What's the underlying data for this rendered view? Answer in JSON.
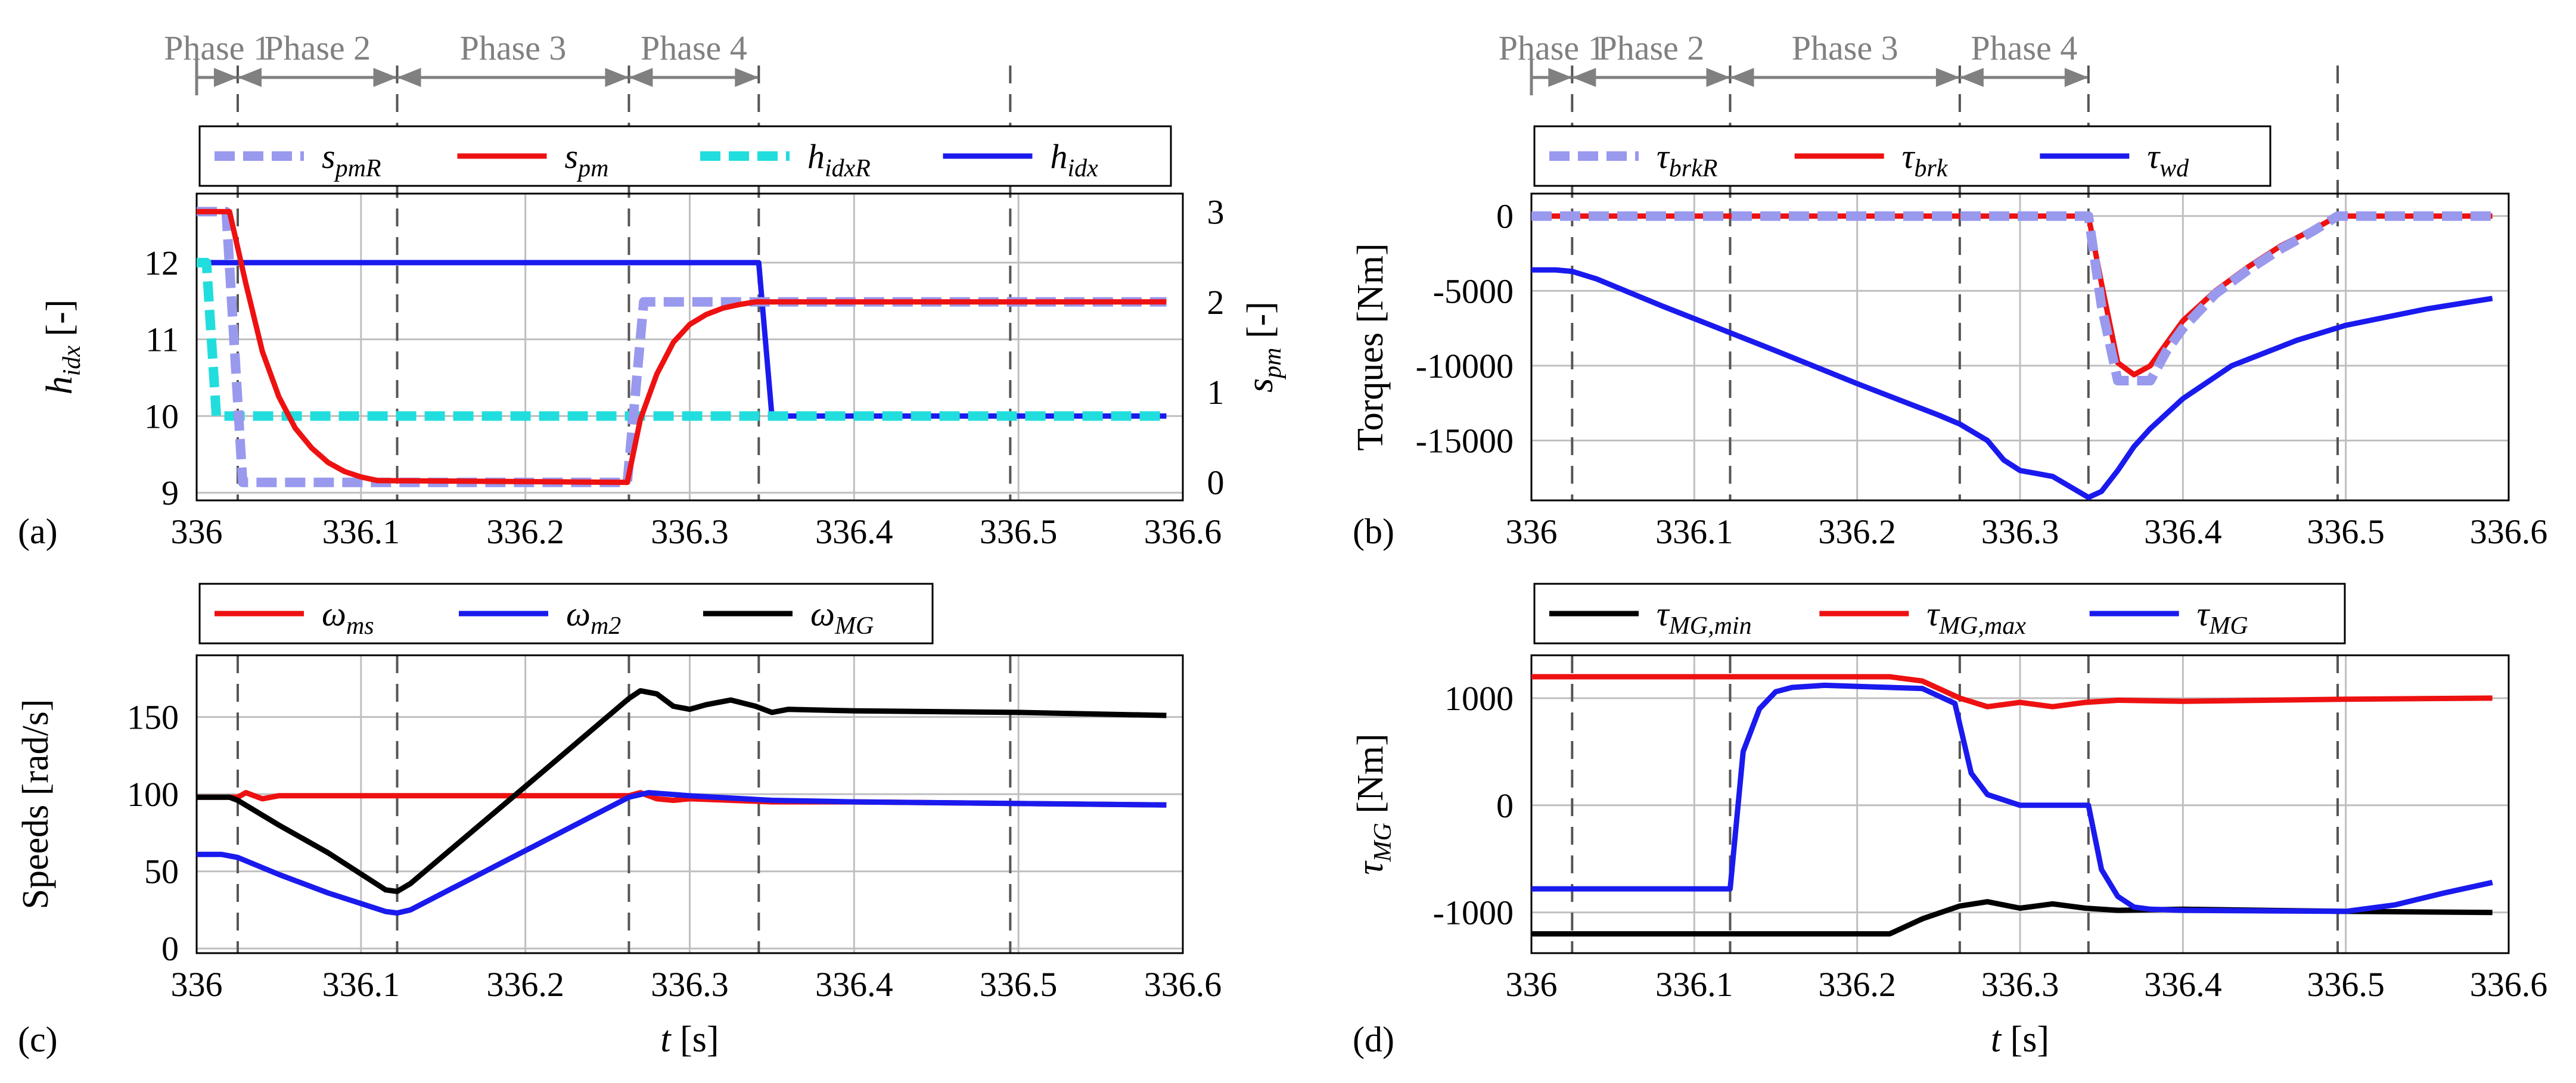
{
  "colors": {
    "lavender": "#9999ee",
    "red": "#ee1111",
    "cyan": "#22dddd",
    "blue": "#1a1aee",
    "black": "#000000",
    "phase_gray": "#808080",
    "grid": "#bfbfbf"
  },
  "phases": {
    "boundaries": [
      336,
      336.025,
      336.122,
      336.263,
      336.342,
      336.495
    ],
    "labels": [
      "Phase 1",
      "Phase 2",
      "Phase 3",
      "Phase 4"
    ]
  },
  "chart_data": [
    {
      "id": "a",
      "type": "line",
      "panel_label": "(a)",
      "xlabel": "",
      "xlim": [
        336,
        336.6
      ],
      "xticks": [
        "336",
        "336.1",
        "336.2",
        "336.3",
        "336.4",
        "336.5",
        "336.6"
      ],
      "ylim": [
        8.9,
        12.9
      ],
      "yticks": [
        "9",
        "10",
        "11",
        "12"
      ],
      "ylabel_main": "h",
      "ylabel_sub": "idx",
      "ylabel_unit": " [-]",
      "y2lim": [
        -0.2,
        3.2
      ],
      "y2ticks": [
        "0",
        "1",
        "2",
        "3"
      ],
      "y2label_main": "s",
      "y2label_sub": "pm",
      "y2label_unit": " [-]",
      "legend": [
        {
          "main": "s",
          "sub": "pmR",
          "style": "dash",
          "color": "#9999ee"
        },
        {
          "main": "s",
          "sub": "pm",
          "style": "solid",
          "color": "#ee1111"
        },
        {
          "main": "h",
          "sub": "idxR",
          "style": "dash",
          "color": "#22dddd"
        },
        {
          "main": "h",
          "sub": "idx",
          "style": "solid",
          "color": "#1a1aee"
        }
      ],
      "series": [
        {
          "name": "h_idx",
          "axis": "left",
          "color": "#1a1aee",
          "style": "solid",
          "x": [
            336,
            336.342,
            336.35,
            336.59
          ],
          "y": [
            12,
            12,
            10,
            10
          ]
        },
        {
          "name": "h_idxR",
          "axis": "left",
          "color": "#22dddd",
          "style": "dash",
          "x": [
            336,
            336.006,
            336.012,
            336.025,
            336.59
          ],
          "y": [
            12,
            12,
            10,
            10,
            10
          ]
        },
        {
          "name": "s_pmR",
          "axis": "right",
          "color": "#9999ee",
          "style": "dash",
          "x": [
            336,
            336.018,
            336.028,
            336.262,
            336.272,
            336.59
          ],
          "y": [
            3,
            3,
            0,
            0,
            2,
            2
          ]
        },
        {
          "name": "s_pm",
          "axis": "right",
          "color": "#ee1111",
          "style": "solid",
          "x": [
            336,
            336.02,
            336.03,
            336.04,
            336.05,
            336.06,
            336.07,
            336.08,
            336.09,
            336.1,
            336.11,
            336.262,
            336.27,
            336.28,
            336.29,
            336.3,
            336.31,
            336.32,
            336.33,
            336.34,
            336.59
          ],
          "y": [
            3,
            3,
            2.2,
            1.45,
            0.95,
            0.6,
            0.38,
            0.22,
            0.12,
            0.06,
            0.02,
            0,
            0.7,
            1.2,
            1.55,
            1.75,
            1.86,
            1.93,
            1.97,
            2,
            2
          ]
        }
      ]
    },
    {
      "id": "b",
      "type": "line",
      "panel_label": "(b)",
      "xlabel": "",
      "xlim": [
        336,
        336.6
      ],
      "xticks": [
        "336",
        "336.1",
        "336.2",
        "336.3",
        "336.4",
        "336.5",
        "336.6"
      ],
      "ylim": [
        -19000,
        1500
      ],
      "yticks": [
        "0",
        "-5000",
        "-10000",
        "-15000"
      ],
      "ytick_values": [
        0,
        -5000,
        -10000,
        -15000
      ],
      "ylabel": "Torques [Nm]",
      "legend": [
        {
          "main": "τ",
          "sub": "brkR",
          "style": "dash",
          "color": "#9999ee"
        },
        {
          "main": "τ",
          "sub": "brk",
          "style": "solid",
          "color": "#ee1111"
        },
        {
          "main": "τ",
          "sub": "wd",
          "style": "solid",
          "color": "#1a1aee"
        }
      ],
      "series": [
        {
          "name": "tau_wd",
          "color": "#1a1aee",
          "style": "solid",
          "x": [
            336,
            336.015,
            336.025,
            336.04,
            336.08,
            336.122,
            336.15,
            336.2,
            336.25,
            336.263,
            336.28,
            336.29,
            336.3,
            336.32,
            336.342,
            336.35,
            336.36,
            336.37,
            336.38,
            336.4,
            336.43,
            336.47,
            336.5,
            336.55,
            336.59
          ],
          "y": [
            -3600,
            -3600,
            -3700,
            -4200,
            -6000,
            -7800,
            -9000,
            -11200,
            -13300,
            -13900,
            -15000,
            -16300,
            -17000,
            -17400,
            -18800,
            -18400,
            -17000,
            -15400,
            -14200,
            -12200,
            -10000,
            -8300,
            -7300,
            -6200,
            -5500
          ]
        },
        {
          "name": "tau_brk",
          "color": "#ee1111",
          "style": "solid",
          "x": [
            336,
            336.342,
            336.35,
            336.36,
            336.37,
            336.38,
            336.39,
            336.4,
            336.42,
            336.44,
            336.46,
            336.48,
            336.495,
            336.59
          ],
          "y": [
            0,
            0,
            -4500,
            -9800,
            -10600,
            -10000,
            -8500,
            -7000,
            -5000,
            -3400,
            -2000,
            -900,
            0,
            0
          ]
        },
        {
          "name": "tau_brkR",
          "color": "#9999ee",
          "style": "dash",
          "x": [
            336,
            336.342,
            336.35,
            336.36,
            336.38,
            336.39,
            336.4,
            336.42,
            336.44,
            336.46,
            336.48,
            336.495,
            336.59
          ],
          "y": [
            0,
            0,
            -6000,
            -11000,
            -11000,
            -9000,
            -7500,
            -5200,
            -3600,
            -2200,
            -1000,
            0,
            0
          ]
        }
      ]
    },
    {
      "id": "c",
      "type": "line",
      "panel_label": "(c)",
      "xlabel_main": "t",
      "xlabel_unit": " [s]",
      "xlim": [
        336,
        336.6
      ],
      "xticks": [
        "336",
        "336.1",
        "336.2",
        "336.3",
        "336.4",
        "336.5",
        "336.6"
      ],
      "ylim": [
        -3,
        190
      ],
      "yticks": [
        "0",
        "50",
        "100",
        "150"
      ],
      "ylabel": "Speeds [rad/s]",
      "legend": [
        {
          "main": "ω",
          "sub": "ms",
          "style": "solid",
          "color": "#ee1111"
        },
        {
          "main": "ω",
          "sub": "m2",
          "style": "solid",
          "color": "#1a1aee"
        },
        {
          "main": "ω",
          "sub": "MG",
          "style": "solid",
          "color": "#000000"
        }
      ],
      "series": [
        {
          "name": "omega_ms",
          "color": "#ee1111",
          "style": "solid",
          "x": [
            336,
            336.025,
            336.03,
            336.04,
            336.05,
            336.1,
            336.263,
            336.27,
            336.28,
            336.29,
            336.3,
            336.35,
            336.4,
            336.59
          ],
          "y": [
            98,
            98,
            101,
            97,
            99,
            99,
            99,
            101,
            97,
            96,
            97,
            95,
            95,
            93
          ]
        },
        {
          "name": "omega_m2",
          "color": "#1a1aee",
          "style": "solid",
          "x": [
            336,
            336.015,
            336.025,
            336.05,
            336.08,
            336.115,
            336.122,
            336.13,
            336.263,
            336.275,
            336.3,
            336.35,
            336.4,
            336.59
          ],
          "y": [
            61,
            61,
            59,
            48,
            36,
            24,
            23,
            25,
            98,
            101,
            99,
            96,
            95,
            93
          ]
        },
        {
          "name": "omega_MG",
          "color": "#000000",
          "style": "solid",
          "x": [
            336,
            336.02,
            336.025,
            336.05,
            336.08,
            336.115,
            336.122,
            336.13,
            336.2,
            336.263,
            336.27,
            336.28,
            336.29,
            336.3,
            336.31,
            336.325,
            336.34,
            336.35,
            336.36,
            336.4,
            336.5,
            336.59
          ],
          "y": [
            98,
            98,
            96,
            80,
            62,
            38,
            37,
            42,
            105,
            162,
            167,
            165,
            157,
            155,
            158,
            161,
            157,
            153,
            155,
            154,
            153,
            151
          ]
        }
      ]
    },
    {
      "id": "d",
      "type": "line",
      "panel_label": "(d)",
      "xlabel_main": "t",
      "xlabel_unit": " [s]",
      "xlim": [
        336,
        336.6
      ],
      "xticks": [
        "336",
        "336.1",
        "336.2",
        "336.3",
        "336.4",
        "336.5",
        "336.6"
      ],
      "ylim": [
        -1380,
        1400
      ],
      "yticks": [
        "1000",
        "0",
        "-1000"
      ],
      "ytick_values": [
        1000,
        0,
        -1000
      ],
      "ylabel_main": "τ",
      "ylabel_sub": "MG",
      "ylabel_unit": " [Nm]",
      "legend": [
        {
          "main": "τ",
          "sub": "MG,min",
          "style": "solid",
          "color": "#000000"
        },
        {
          "main": "τ",
          "sub": "MG,max",
          "style": "solid",
          "color": "#ee1111"
        },
        {
          "main": "τ",
          "sub": "MG",
          "style": "solid",
          "color": "#1a1aee"
        }
      ],
      "series": [
        {
          "name": "tau_MG_max",
          "color": "#ee1111",
          "style": "solid",
          "x": [
            336,
            336.22,
            336.24,
            336.263,
            336.28,
            336.3,
            336.32,
            336.34,
            336.36,
            336.4,
            336.5,
            336.59
          ],
          "y": [
            1200,
            1200,
            1160,
            1000,
            920,
            960,
            920,
            960,
            980,
            970,
            990,
            1000
          ]
        },
        {
          "name": "tau_MG_min",
          "color": "#000000",
          "style": "solid",
          "x": [
            336,
            336.22,
            336.24,
            336.263,
            336.28,
            336.3,
            336.32,
            336.34,
            336.36,
            336.4,
            336.5,
            336.59
          ],
          "y": [
            -1200,
            -1200,
            -1060,
            -940,
            -900,
            -960,
            -920,
            -960,
            -980,
            -970,
            -990,
            -1000
          ]
        },
        {
          "name": "tau_MG",
          "color": "#1a1aee",
          "style": "solid",
          "x": [
            336,
            336.122,
            336.13,
            336.14,
            336.15,
            336.16,
            336.18,
            336.2,
            336.24,
            336.26,
            336.27,
            336.28,
            336.3,
            336.342,
            336.35,
            336.36,
            336.37,
            336.38,
            336.4,
            336.5,
            336.53,
            336.56,
            336.59
          ],
          "y": [
            -780,
            -780,
            500,
            900,
            1060,
            1100,
            1120,
            1110,
            1090,
            950,
            300,
            100,
            0,
            0,
            -600,
            -850,
            -950,
            -970,
            -980,
            -990,
            -930,
            -820,
            -720
          ]
        }
      ]
    }
  ]
}
